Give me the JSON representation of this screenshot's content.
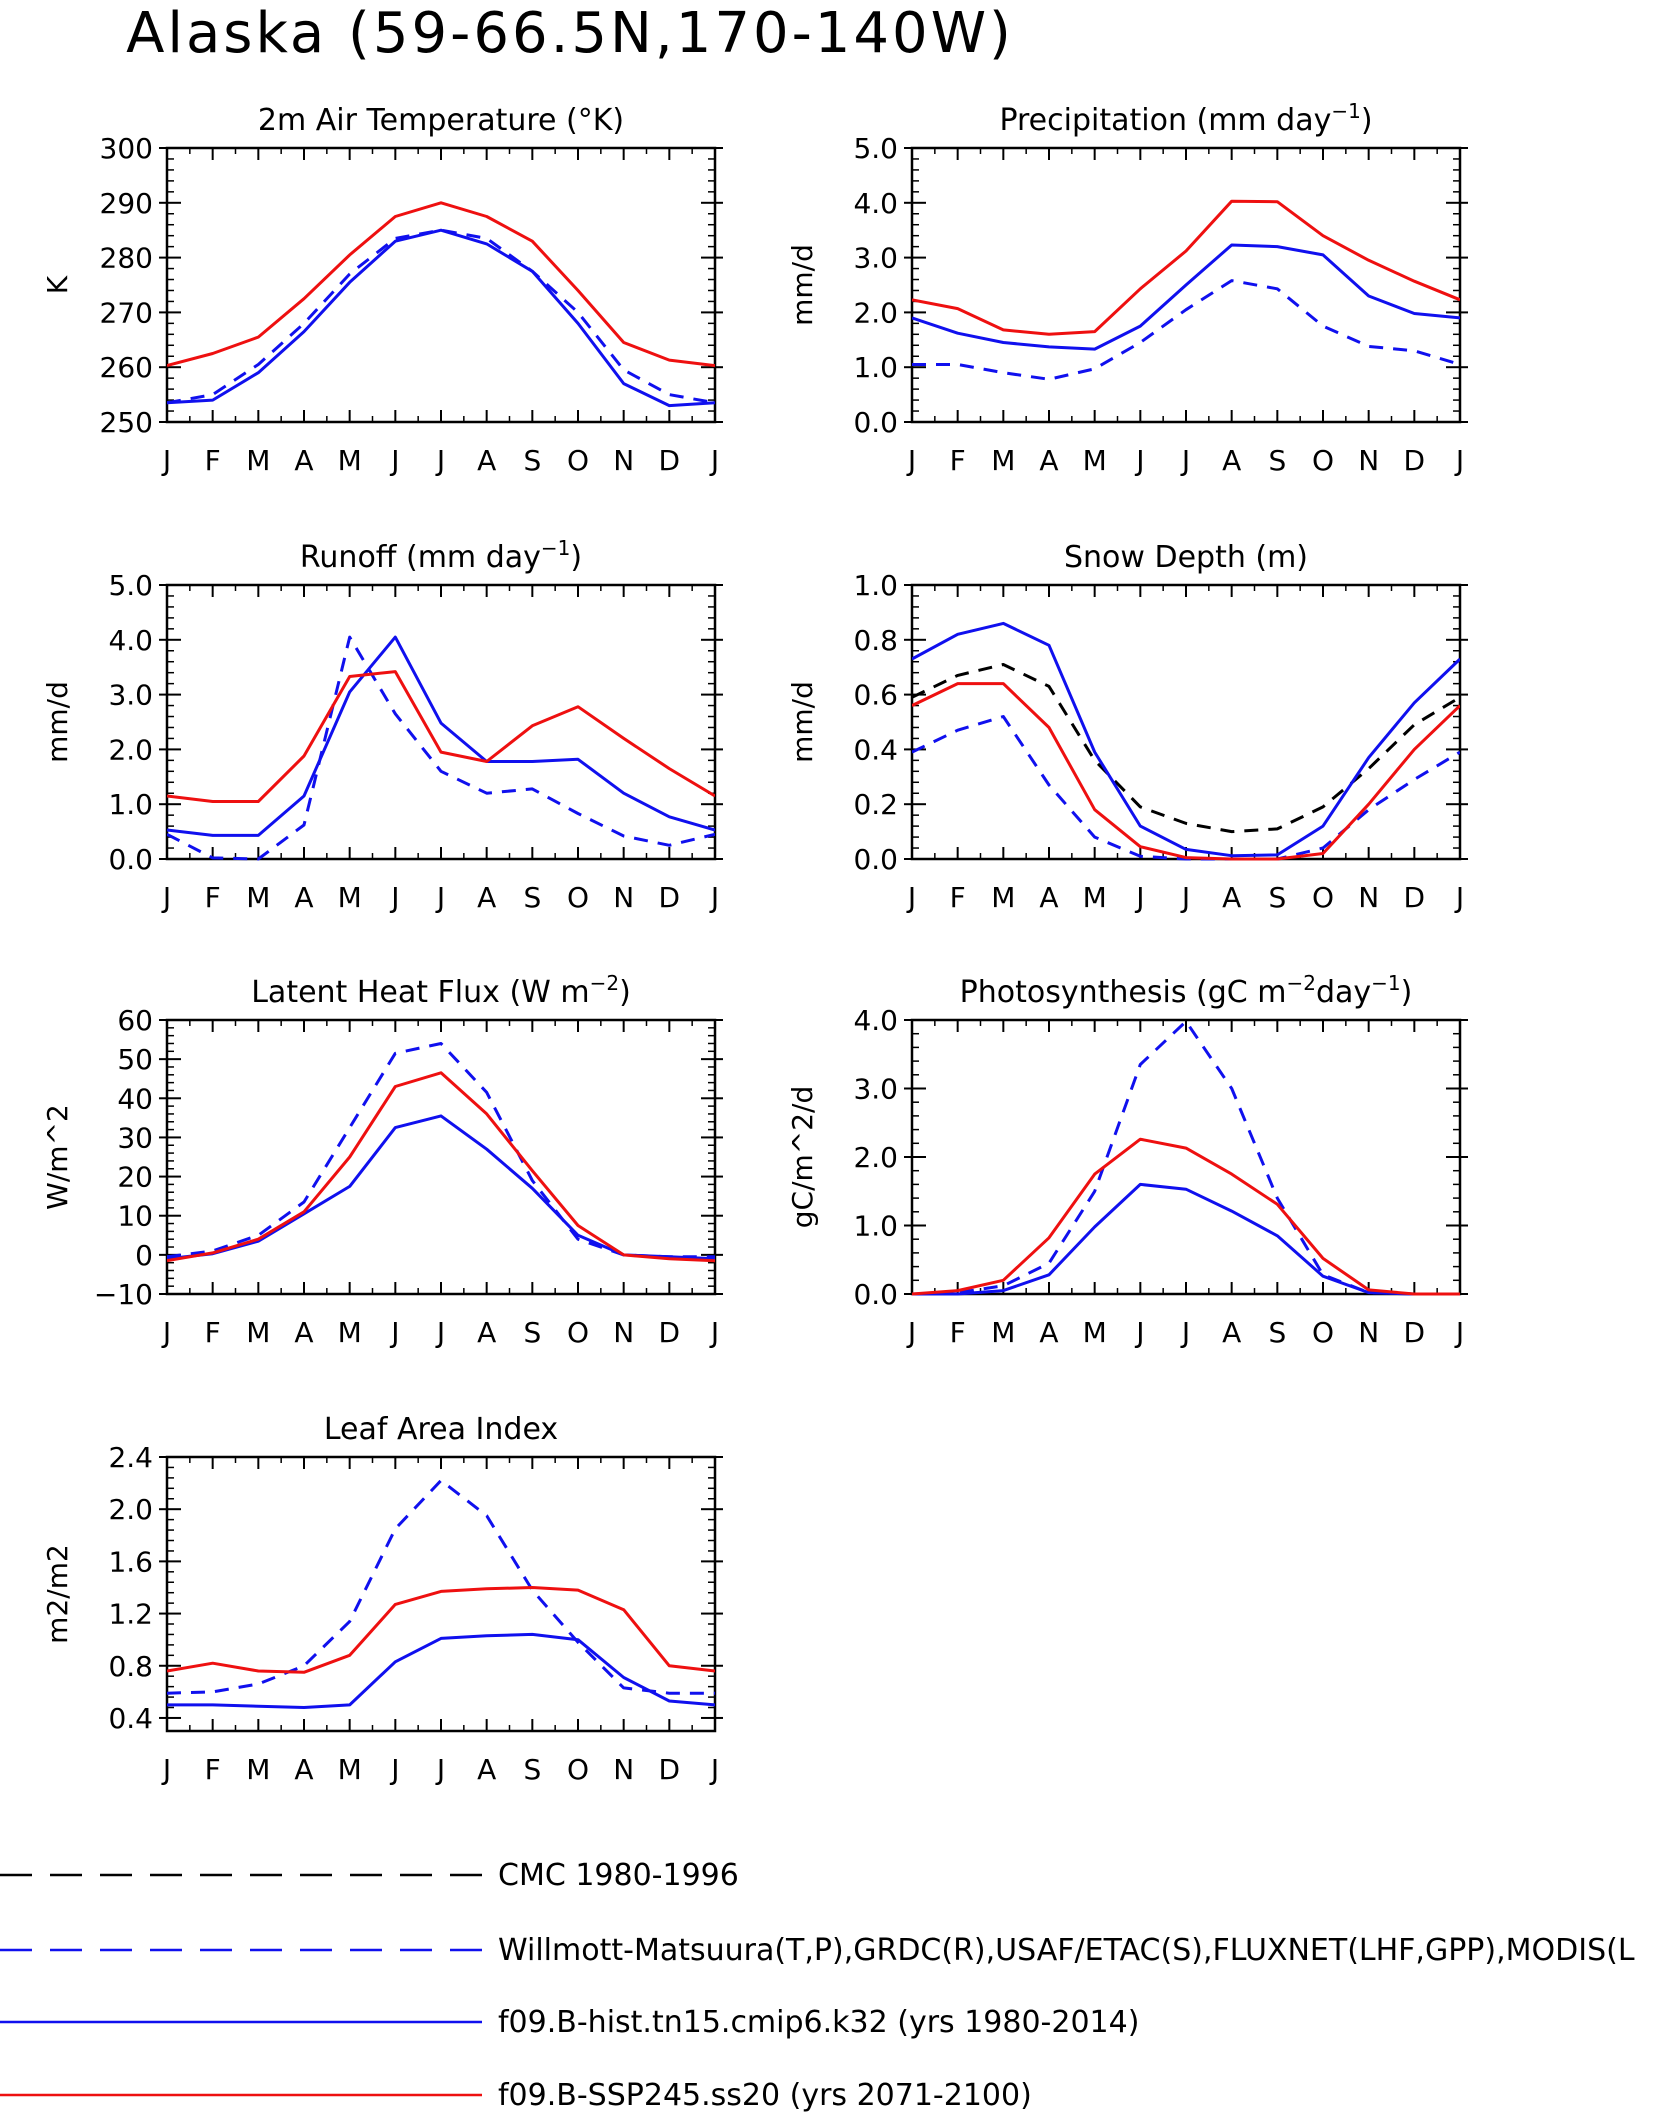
{
  "title": "Alaska (59-66.5N,170-140W)",
  "months": [
    "J",
    "F",
    "M",
    "A",
    "M",
    "J",
    "J",
    "A",
    "S",
    "O",
    "N",
    "D",
    "J"
  ],
  "colors": {
    "black": "#000000",
    "blue": "#1010ee",
    "red": "#ee1010"
  },
  "legend": [
    {
      "label": "CMC 1980-1996",
      "color": "#000000",
      "dashed": true
    },
    {
      "label": "Willmott-Matsuura(T,P),GRDC(R),USAF/ETAC(S),FLUXNET(LHF,GPP),MODIS(L",
      "color": "#1010ee",
      "dashed": true
    },
    {
      "label": "f09.B-hist.tn15.cmip6.k32 (yrs 1980-2014)",
      "color": "#1010ee",
      "dashed": false
    },
    {
      "label": "f09.B-SSP245.ss20 (yrs 2071-2100)",
      "color": "#ee1010",
      "dashed": false
    }
  ],
  "chart_data": [
    {
      "type": "line",
      "title": "2m Air Temperature (°K)",
      "ylabel": "K",
      "ylim": [
        250,
        300
      ],
      "yticks": [
        "250",
        "260",
        "270",
        "280",
        "290",
        "300"
      ],
      "ytick_values": [
        250,
        260,
        270,
        280,
        290,
        300
      ],
      "series": [
        {
          "style": "obs",
          "values": [
            253.5,
            255.0,
            260.5,
            268.0,
            277.0,
            283.5,
            285.0,
            283.5,
            277.5,
            270.0,
            259.5,
            255.0,
            253.5
          ]
        },
        {
          "style": "hist",
          "values": [
            253.5,
            254.0,
            259.0,
            266.5,
            275.5,
            283.0,
            285.0,
            282.5,
            277.5,
            268.0,
            257.0,
            253.0,
            253.5
          ]
        },
        {
          "style": "ssp",
          "values": [
            260.3,
            262.5,
            265.5,
            272.5,
            280.5,
            287.5,
            290.0,
            287.5,
            283.0,
            274.0,
            264.5,
            261.3,
            260.3
          ]
        }
      ]
    },
    {
      "type": "line",
      "title": "Precipitation (mm day-1)",
      "title_main": "Precipitation (mm day",
      "title_sup": "−1",
      "title_end": ")",
      "ylabel": "mm/d",
      "ylim": [
        0,
        5
      ],
      "yticks": [
        "0.0",
        "1.0",
        "2.0",
        "3.0",
        "4.0",
        "5.0"
      ],
      "ytick_values": [
        0,
        1,
        2,
        3,
        4,
        5
      ],
      "series": [
        {
          "style": "obs",
          "values": [
            1.05,
            1.05,
            0.9,
            0.78,
            0.97,
            1.45,
            2.05,
            2.58,
            2.43,
            1.75,
            1.38,
            1.3,
            1.05
          ]
        },
        {
          "style": "hist",
          "values": [
            1.9,
            1.62,
            1.45,
            1.37,
            1.33,
            1.75,
            2.5,
            3.23,
            3.2,
            3.05,
            2.3,
            1.98,
            1.9
          ]
        },
        {
          "style": "ssp",
          "values": [
            2.23,
            2.07,
            1.68,
            1.6,
            1.65,
            2.43,
            3.12,
            4.03,
            4.02,
            3.4,
            2.95,
            2.57,
            2.23
          ]
        }
      ]
    },
    {
      "type": "line",
      "title": "Runoff (mm day-1)",
      "title_main": "Runoff (mm day",
      "title_sup": "−1",
      "title_end": ")",
      "ylabel": "mm/d",
      "ylim": [
        0,
        5
      ],
      "yticks": [
        "0.0",
        "1.0",
        "2.0",
        "3.0",
        "4.0",
        "5.0"
      ],
      "ytick_values": [
        0,
        1,
        2,
        3,
        4,
        5
      ],
      "series": [
        {
          "style": "obs",
          "values": [
            0.45,
            0.02,
            0.0,
            0.62,
            4.05,
            2.65,
            1.6,
            1.2,
            1.28,
            0.83,
            0.42,
            0.25,
            0.45
          ]
        },
        {
          "style": "hist",
          "values": [
            0.53,
            0.43,
            0.43,
            1.15,
            3.05,
            4.05,
            2.48,
            1.78,
            1.78,
            1.82,
            1.2,
            0.77,
            0.53
          ]
        },
        {
          "style": "ssp",
          "values": [
            1.15,
            1.05,
            1.05,
            1.88,
            3.33,
            3.42,
            1.95,
            1.78,
            2.43,
            2.78,
            2.2,
            1.65,
            1.15
          ]
        }
      ]
    },
    {
      "type": "line",
      "title": "Snow Depth (m)",
      "ylabel": "mm/d",
      "ylim": [
        0,
        1
      ],
      "yticks": [
        "0.0",
        "0.2",
        "0.4",
        "0.6",
        "0.8",
        "1.0"
      ],
      "ytick_values": [
        0,
        0.2,
        0.4,
        0.6,
        0.8,
        1.0
      ],
      "series": [
        {
          "style": "cmc",
          "values": [
            0.59,
            0.67,
            0.71,
            0.63,
            0.36,
            0.19,
            0.13,
            0.1,
            0.11,
            0.19,
            0.33,
            0.49,
            0.59
          ]
        },
        {
          "style": "obs",
          "values": [
            0.39,
            0.47,
            0.52,
            0.27,
            0.08,
            0.01,
            0.0,
            0.0,
            0.0,
            0.04,
            0.18,
            0.29,
            0.39
          ]
        },
        {
          "style": "hist",
          "values": [
            0.73,
            0.82,
            0.86,
            0.78,
            0.39,
            0.12,
            0.035,
            0.012,
            0.015,
            0.12,
            0.37,
            0.57,
            0.73
          ]
        },
        {
          "style": "ssp",
          "values": [
            0.56,
            0.64,
            0.64,
            0.48,
            0.18,
            0.045,
            0.005,
            0.0,
            0.0,
            0.02,
            0.2,
            0.4,
            0.56
          ]
        }
      ]
    },
    {
      "type": "line",
      "title": "Latent Heat Flux (W m-2)",
      "title_main": "Latent Heat Flux (W m",
      "title_sup": "−2",
      "title_end": ")",
      "ylabel": "W/m^2",
      "ylim": [
        -10,
        60
      ],
      "yticks": [
        "−10",
        "0",
        "10",
        "20",
        "30",
        "40",
        "50",
        "60"
      ],
      "ytick_values": [
        -10,
        0,
        10,
        20,
        30,
        40,
        50,
        60
      ],
      "series": [
        {
          "style": "obs",
          "values": [
            -0.5,
            1.0,
            5.0,
            13.5,
            32.5,
            51.5,
            54.0,
            41.5,
            19.0,
            4.0,
            0.0,
            -0.5,
            -0.5
          ]
        },
        {
          "style": "hist",
          "values": [
            -1.0,
            0.3,
            3.5,
            10.5,
            17.5,
            32.5,
            35.5,
            27.0,
            17.0,
            5.0,
            0.0,
            -0.5,
            -1.0
          ]
        },
        {
          "style": "ssp",
          "values": [
            -1.5,
            0.5,
            4.0,
            11.0,
            25.0,
            43.0,
            46.5,
            36.0,
            21.5,
            7.5,
            0.0,
            -1.0,
            -1.5
          ]
        }
      ]
    },
    {
      "type": "line",
      "title": "Photosynthesis (gC m-2day-1)",
      "title_main": "Photosynthesis (gC m",
      "title_sup": "−2",
      "title_mid": "day",
      "title_sup2": "−1",
      "title_end": ")",
      "ylabel": "gC/m^2/d",
      "ylim": [
        0,
        4
      ],
      "yticks": [
        "0.0",
        "1.0",
        "2.0",
        "3.0",
        "4.0"
      ],
      "ytick_values": [
        0,
        1,
        2,
        3,
        4
      ],
      "series": [
        {
          "style": "obs",
          "values": [
            0.0,
            0.02,
            0.12,
            0.45,
            1.5,
            3.35,
            3.98,
            3.0,
            1.4,
            0.28,
            0.02,
            0.0,
            0.0
          ]
        },
        {
          "style": "hist",
          "values": [
            0.0,
            0.0,
            0.05,
            0.28,
            0.98,
            1.6,
            1.53,
            1.21,
            0.85,
            0.26,
            0.02,
            0.0,
            0.0
          ]
        },
        {
          "style": "ssp",
          "values": [
            0.0,
            0.05,
            0.2,
            0.82,
            1.75,
            2.26,
            2.13,
            1.75,
            1.31,
            0.52,
            0.06,
            0.0,
            0.0
          ]
        }
      ]
    },
    {
      "type": "line",
      "title": "Leaf Area Index",
      "ylabel": "m2/m2",
      "ylim": [
        0.3,
        2.4
      ],
      "yticks": [
        "0.4",
        "0.8",
        "1.2",
        "1.6",
        "2.0",
        "2.4"
      ],
      "ytick_values": [
        0.4,
        0.8,
        1.2,
        1.6,
        2.0,
        2.4
      ],
      "series": [
        {
          "style": "obs",
          "values": [
            0.59,
            0.6,
            0.66,
            0.8,
            1.14,
            1.85,
            2.22,
            1.95,
            1.38,
            0.98,
            0.63,
            0.59,
            0.59
          ]
        },
        {
          "style": "hist",
          "values": [
            0.5,
            0.5,
            0.49,
            0.48,
            0.5,
            0.83,
            1.01,
            1.03,
            1.04,
            1.0,
            0.71,
            0.53,
            0.5
          ]
        },
        {
          "style": "ssp",
          "values": [
            0.76,
            0.82,
            0.76,
            0.75,
            0.88,
            1.27,
            1.37,
            1.39,
            1.4,
            1.38,
            1.23,
            0.8,
            0.76
          ]
        }
      ]
    }
  ]
}
